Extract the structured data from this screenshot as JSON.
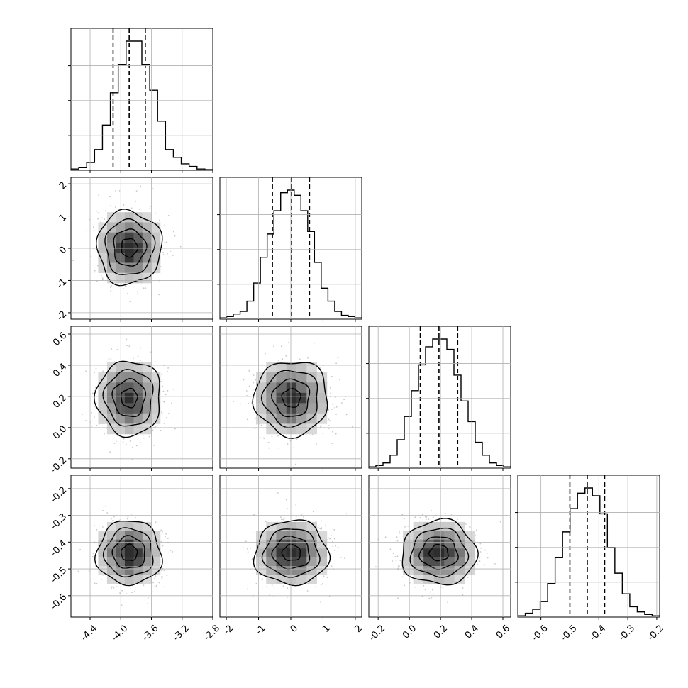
{
  "chart_data": {
    "type": "corner",
    "params": [
      {
        "range": [
          -4.65,
          -2.8
        ],
        "ticks": [
          "-4.4",
          "-4.0",
          "-3.6",
          "-3.2",
          "-2.8"
        ],
        "tick_values": [
          -4.4,
          -4.0,
          -3.6,
          -3.2,
          -2.8
        ],
        "quantiles": [
          -4.1,
          -3.89,
          -3.68
        ],
        "hist": [
          1,
          2,
          6,
          16,
          35,
          60,
          82,
          100,
          100,
          82,
          62,
          38,
          16,
          10,
          5,
          3,
          1,
          0.5
        ]
      },
      {
        "range": [
          -2.2,
          2.2
        ],
        "ticks": [
          "-2",
          "-1",
          "0",
          "1",
          "2"
        ],
        "tick_values": [
          -2,
          -1,
          0,
          1,
          2
        ],
        "quantiles": [
          -0.57,
          0.02,
          0.58
        ],
        "hist": [
          1,
          2,
          4,
          6,
          14,
          28,
          48,
          66,
          84,
          98,
          100,
          96,
          84,
          68,
          44,
          24,
          14,
          6,
          3,
          2,
          1
        ]
      },
      {
        "range": [
          -0.26,
          0.65
        ],
        "ticks": [
          "-0.2",
          "0.0",
          "0.2",
          "0.4",
          "0.6"
        ],
        "tick_values": [
          -0.2,
          0.0,
          0.2,
          0.4,
          0.6
        ],
        "quantiles": [
          0.07,
          0.19,
          0.31
        ],
        "hist": [
          1,
          2,
          4,
          10,
          22,
          40,
          60,
          80,
          94,
          100,
          100,
          92,
          72,
          52,
          36,
          20,
          10,
          4,
          2,
          1
        ]
      },
      {
        "range": [
          -0.68,
          -0.19
        ],
        "ticks": [
          "-0.6",
          "-0.5",
          "-0.4",
          "-0.3",
          "-0.2"
        ],
        "tick_values": [
          -0.6,
          -0.5,
          -0.4,
          -0.3,
          -0.2
        ],
        "quantiles": [
          -0.5,
          -0.44,
          -0.38
        ],
        "hist": [
          1,
          3,
          6,
          12,
          26,
          46,
          66,
          84,
          96,
          100,
          94,
          80,
          54,
          34,
          18,
          8,
          4,
          2,
          1
        ]
      }
    ],
    "params_y": [
      null,
      {
        "range": [
          -2.2,
          2.2
        ],
        "ticks": [
          "-2",
          "-1",
          "0",
          "1",
          "2"
        ],
        "tick_values": [
          -2,
          -1,
          0,
          1,
          2
        ]
      },
      {
        "range": [
          -0.26,
          0.65
        ],
        "ticks": [
          "-0.2",
          "0.0",
          "0.2",
          "0.4",
          "0.6"
        ],
        "tick_values": [
          -0.2,
          0.0,
          0.2,
          0.4,
          0.6
        ]
      },
      {
        "range": [
          -0.68,
          -0.15
        ],
        "ticks": [
          "-0.6",
          "-0.5",
          "-0.4",
          "-0.3",
          "-0.2"
        ],
        "tick_values": [
          -0.6,
          -0.5,
          -0.4,
          -0.3,
          -0.2
        ]
      }
    ],
    "means": [
      -3.89,
      0.02,
      0.19,
      -0.44
    ],
    "sigmas": [
      0.21,
      0.57,
      0.12,
      0.06
    ],
    "grid": true,
    "colors": {
      "hist": "#000000",
      "contour": "#000000",
      "points": "#b0b0b0",
      "grid": "#b0b0b0"
    }
  }
}
